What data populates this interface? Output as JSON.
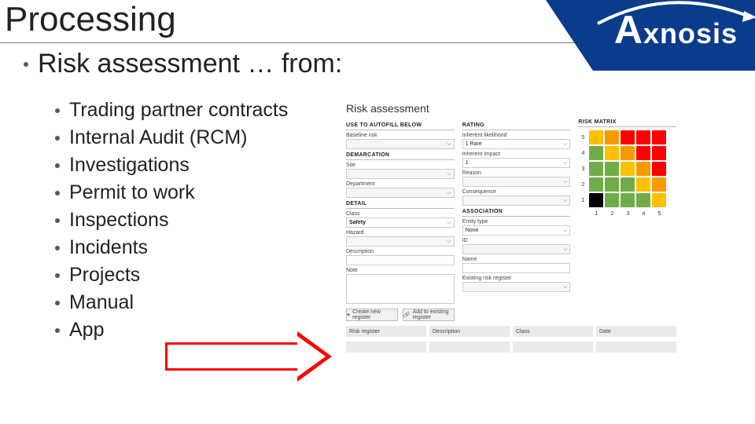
{
  "slide": {
    "title": "Processing",
    "subtitle": "Risk assessment … from:",
    "list": [
      "Trading partner contracts",
      "Internal Audit (RCM)",
      "Investigations",
      "Permit to work",
      "Inspections",
      "Incidents",
      "Projects",
      "Manual",
      "App"
    ]
  },
  "logo": {
    "text_left": "A",
    "text_rest": "xnosis",
    "bg_color": "#0b3c8c",
    "text_color": "#ffffff"
  },
  "arrow": {
    "border_color": "#ff0000"
  },
  "panel": {
    "title": "Risk assessment",
    "left_col": {
      "autofill": {
        "header": "USE TO AUTOFILL BELOW",
        "label": "Baseline risk",
        "value": ""
      },
      "demarcation": {
        "header": "DEMARCATION",
        "site_label": "Site",
        "site_value": "",
        "dept_label": "Department"
      },
      "detail": {
        "header": "DETAIL",
        "class_label": "Class",
        "class_value": "Safety",
        "hazard_label": "Hazard",
        "hazard_value": "",
        "description_label": "Description",
        "note_label": "Note"
      }
    },
    "mid_col": {
      "rating": {
        "header": "RATING",
        "likelihood_label": "Inherent likelihood",
        "likelihood_value": "1 Rare",
        "impact_label": "Inherent impact",
        "impact_value": "1",
        "reason_label": "Reason",
        "consequence_label": "Consequence"
      },
      "association": {
        "header": "ASSOCIATION",
        "entity_label": "Entity type",
        "entity_value": "None",
        "id_label": "ID",
        "name_label": "Name"
      }
    },
    "right_col": {
      "header": "RISK MATRIX",
      "matrix": {
        "y_labels": [
          "5",
          "4",
          "3",
          "2",
          "1"
        ],
        "x_labels": [
          "1",
          "2",
          "3",
          "4",
          "5"
        ],
        "colors": [
          [
            "#ffc000",
            "#f59b00",
            "#ff0000",
            "#ff0000",
            "#ff0000"
          ],
          [
            "#70ad47",
            "#ffc000",
            "#f59b00",
            "#ff0000",
            "#ff0000"
          ],
          [
            "#70ad47",
            "#70ad47",
            "#ffc000",
            "#f59b00",
            "#ff0000"
          ],
          [
            "#70ad47",
            "#70ad47",
            "#70ad47",
            "#ffc000",
            "#f59b00"
          ],
          [
            "#000000",
            "#70ad47",
            "#70ad47",
            "#70ad47",
            "#ffc000"
          ]
        ]
      }
    },
    "buttons": {
      "create": "Create new register",
      "add": "Add to existing register",
      "existing_label": "Existing risk register"
    },
    "table_headers": [
      "Risk register",
      "Description",
      "Class",
      "Date"
    ]
  }
}
